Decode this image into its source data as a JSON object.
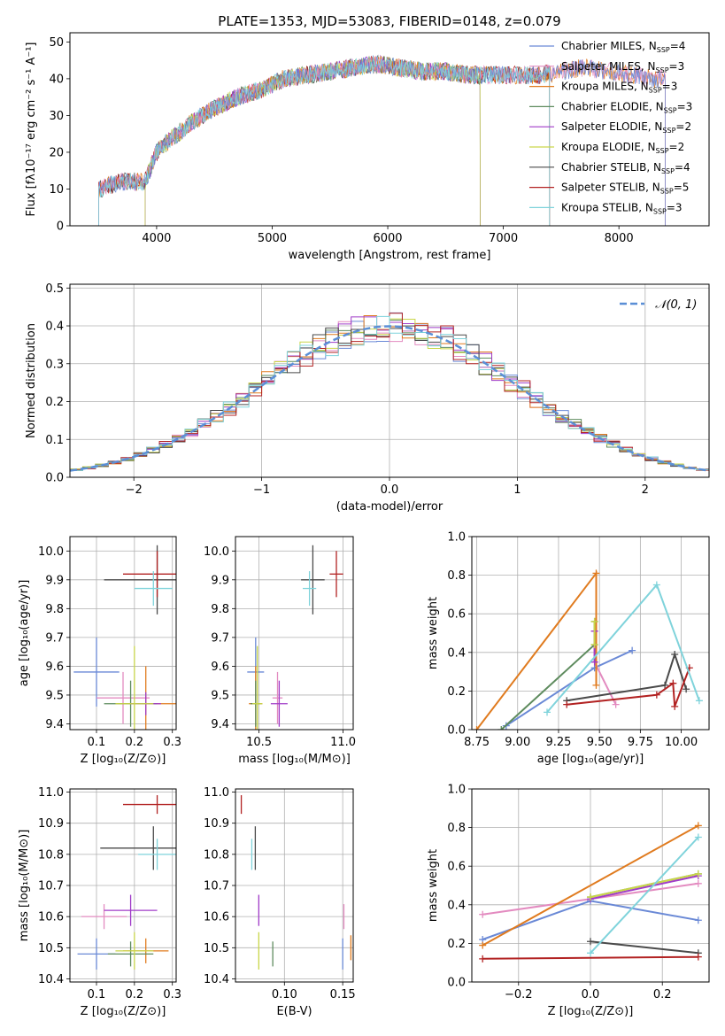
{
  "figure": {
    "title": "PLATE=1353, MJD=53083, FIBERID=0148, z=0.079"
  },
  "chart_data": [
    {
      "id": "spectrum",
      "type": "line",
      "xlabel": "wavelength [Angstrom, rest frame]",
      "ylabel": "Flux [fλ10⁻¹⁷ erg cm⁻² s⁻¹ A⁻¹]",
      "xlim": [
        3250,
        8780
      ],
      "ylim": [
        0,
        52.5
      ],
      "xticks": [
        4000,
        5000,
        6000,
        7000,
        8000
      ],
      "yticks": [
        0,
        10,
        20,
        30,
        40,
        50
      ],
      "legend_position": "upper right",
      "continuum_x": [
        3500,
        3700,
        3900,
        4000,
        4100,
        4300,
        4500,
        4700,
        4900,
        5100,
        5300,
        5500,
        5700,
        5900,
        6100,
        6300,
        6500,
        6700,
        6900,
        7100,
        7300,
        7500,
        7700,
        7900,
        8100,
        8300,
        8400
      ],
      "continuum_y": [
        10,
        12,
        12,
        20,
        23,
        28,
        32,
        35,
        37,
        40,
        41,
        42,
        43,
        44,
        43,
        42,
        42,
        41,
        41,
        41,
        41,
        42,
        43,
        42,
        41,
        40,
        40
      ],
      "series": [
        {
          "name": "Chabrier MILES, N$_{SSP}$=4",
          "label_main": "Chabrier MILES, N",
          "label_sub": "SSP",
          "label_end": "=4",
          "color": "#6a89d6",
          "start": 3500,
          "end": 8400
        },
        {
          "name": "Salpeter MILES, N$_{SSP}$=3",
          "label_main": "Salpeter MILES, N",
          "label_sub": "SSP",
          "label_end": "=3",
          "color": "#e38bc0",
          "start": 3500,
          "end": 8400
        },
        {
          "name": "Kroupa MILES, N$_{SSP}$=3",
          "label_main": "Kroupa MILES, N",
          "label_sub": "SSP",
          "label_end": "=3",
          "color": "#e07b1f",
          "start": 3500,
          "end": 8400
        },
        {
          "name": "Chabrier ELODIE, N$_{SSP}$=3",
          "label_main": "Chabrier ELODIE, N",
          "label_sub": "SSP",
          "label_end": "=3",
          "color": "#5e8b5e",
          "start": 3900,
          "end": 6800
        },
        {
          "name": "Salpeter ELODIE, N$_{SSP}$=2",
          "label_main": "Salpeter ELODIE, N",
          "label_sub": "SSP",
          "label_end": "=2",
          "color": "#a03cc8",
          "start": 3900,
          "end": 6800
        },
        {
          "name": "Kroupa ELODIE, N$_{SSP}$=2",
          "label_main": "Kroupa ELODIE, N",
          "label_sub": "SSP",
          "label_end": "=2",
          "color": "#c9d64a",
          "start": 3900,
          "end": 6800
        },
        {
          "name": "Chabrier STELIB, N$_{SSP}$=4",
          "label_main": "Chabrier STELIB, N",
          "label_sub": "SSP",
          "label_end": "=4",
          "color": "#4a4a4a",
          "start": 3500,
          "end": 7400
        },
        {
          "name": "Salpeter STELIB, N$_{SSP}$=5",
          "label_main": "Salpeter STELIB, N",
          "label_sub": "SSP",
          "label_end": "=5",
          "color": "#b22222",
          "start": 3500,
          "end": 7400
        },
        {
          "name": "Kroupa STELIB, N$_{SSP}$=3",
          "label_main": "Kroupa STELIB, N",
          "label_sub": "SSP",
          "label_end": "=3",
          "color": "#7fd3db",
          "start": 3500,
          "end": 7400
        }
      ]
    },
    {
      "id": "residuals",
      "type": "histogram",
      "xlabel": "(data-model)/error",
      "ylabel": "Normed distribution",
      "xlim": [
        -2.5,
        2.5
      ],
      "ylim": [
        0,
        0.51
      ],
      "xticks": [
        -2,
        -1,
        0,
        1,
        2
      ],
      "yticks": [
        0.0,
        0.1,
        0.2,
        0.3,
        0.4,
        0.5
      ],
      "grid": true,
      "legend_position": "upper right",
      "reference_curve": {
        "name": "N(0,1)",
        "label": "𝒩(0, 1)",
        "color": "#5b8fd6",
        "mean": 0,
        "sigma": 1
      },
      "bin_width": 0.1
    },
    {
      "id": "age_vs_Z",
      "type": "errorbar",
      "xlabel": "Z [log₁₀(Z/Z⊙)]",
      "ylabel": "age  [log₁₀(age/yr)]",
      "xlim": [
        0.03,
        0.31
      ],
      "ylim": [
        9.38,
        10.05
      ],
      "xticks": [
        0.1,
        0.2,
        0.3
      ],
      "yticks": [
        9.4,
        9.5,
        9.6,
        9.7,
        9.8,
        9.9,
        10.0
      ],
      "grid": true,
      "points": [
        {
          "x": 0.1,
          "y": 9.58,
          "xerr": 0.06,
          "yerr": 0.12,
          "color": "#6a89d6"
        },
        {
          "x": 0.17,
          "y": 9.49,
          "xerr": 0.07,
          "yerr": 0.09,
          "color": "#e38bc0"
        },
        {
          "x": 0.23,
          "y": 9.47,
          "xerr": 0.08,
          "yerr": 0.13,
          "color": "#e07b1f"
        },
        {
          "x": 0.19,
          "y": 9.47,
          "xerr": 0.07,
          "yerr": 0.08,
          "color": "#5e8b5e"
        },
        {
          "x": 0.23,
          "y": 9.47,
          "xerr": 0.04,
          "yerr": 0.04,
          "color": "#a03cc8"
        },
        {
          "x": 0.2,
          "y": 9.47,
          "xerr": 0.05,
          "yerr": 0.2,
          "color": "#c9d64a"
        },
        {
          "x": 0.26,
          "y": 9.9,
          "xerr": 0.14,
          "yerr": 0.12,
          "color": "#4a4a4a"
        },
        {
          "x": 0.26,
          "y": 9.92,
          "xerr": 0.09,
          "yerr": 0.08,
          "color": "#b22222"
        },
        {
          "x": 0.25,
          "y": 9.87,
          "xerr": 0.05,
          "yerr": 0.06,
          "color": "#7fd3db"
        }
      ]
    },
    {
      "id": "age_vs_mass",
      "type": "errorbar",
      "xlabel": "mass [log₁₀(M/M⊙)]",
      "ylabel": "",
      "xlim": [
        10.36,
        11.06
      ],
      "ylim": [
        9.38,
        10.05
      ],
      "xticks": [
        10.5,
        11.0
      ],
      "yticks": [
        9.4,
        9.5,
        9.6,
        9.7,
        9.8,
        9.9,
        10.0
      ],
      "grid": true,
      "points": [
        {
          "x": 10.48,
          "y": 9.58,
          "xerr": 0.05,
          "yerr": 0.12,
          "color": "#6a89d6"
        },
        {
          "x": 10.61,
          "y": 9.49,
          "xerr": 0.03,
          "yerr": 0.09,
          "color": "#e38bc0"
        },
        {
          "x": 10.48,
          "y": 9.47,
          "xerr": 0.04,
          "yerr": 0.13,
          "color": "#e07b1f"
        },
        {
          "x": 10.48,
          "y": 9.47,
          "xerr": 0.03,
          "yerr": 0.08,
          "color": "#5e8b5e"
        },
        {
          "x": 10.62,
          "y": 9.47,
          "xerr": 0.05,
          "yerr": 0.08,
          "color": "#a03cc8"
        },
        {
          "x": 10.49,
          "y": 9.47,
          "xerr": 0.03,
          "yerr": 0.2,
          "color": "#c9d64a"
        },
        {
          "x": 10.82,
          "y": 9.9,
          "xerr": 0.07,
          "yerr": 0.12,
          "color": "#4a4a4a"
        },
        {
          "x": 10.96,
          "y": 9.92,
          "xerr": 0.04,
          "yerr": 0.08,
          "color": "#b22222"
        },
        {
          "x": 10.8,
          "y": 9.87,
          "xerr": 0.04,
          "yerr": 0.06,
          "color": "#7fd3db"
        }
      ]
    },
    {
      "id": "weight_vs_age",
      "type": "line",
      "xlabel": "age  [log₁₀(age/yr)]",
      "ylabel": "mass weight",
      "xlim": [
        8.72,
        10.17
      ],
      "ylim": [
        0.0,
        1.0
      ],
      "xticks": [
        8.75,
        9.0,
        9.25,
        9.5,
        9.75,
        10.0
      ],
      "yticks": [
        0.0,
        0.2,
        0.4,
        0.6,
        0.8,
        1.0
      ],
      "grid": true,
      "series": [
        {
          "color": "#6a89d6",
          "x": [
            8.93,
            9.47,
            9.7
          ],
          "y": [
            0.02,
            0.32,
            0.41
          ]
        },
        {
          "color": "#e38bc0",
          "x": [
            9.47,
            9.47,
            9.6
          ],
          "y": [
            0.51,
            0.35,
            0.13
          ]
        },
        {
          "color": "#e07b1f",
          "x": [
            8.75,
            9.48,
            9.48
          ],
          "y": [
            0.0,
            0.81,
            0.23
          ]
        },
        {
          "color": "#5e8b5e",
          "x": [
            8.9,
            9.47,
            9.47
          ],
          "y": [
            0.0,
            0.44,
            0.56
          ]
        },
        {
          "color": "#a03cc8",
          "x": [
            9.47,
            9.47
          ],
          "y": [
            0.35,
            0.51
          ]
        },
        {
          "color": "#c9d64a",
          "x": [
            9.47,
            9.47
          ],
          "y": [
            0.44,
            0.56
          ]
        },
        {
          "color": "#4a4a4a",
          "x": [
            9.3,
            9.9,
            9.96,
            10.03
          ],
          "y": [
            0.15,
            0.23,
            0.39,
            0.21
          ]
        },
        {
          "color": "#b22222",
          "x": [
            9.3,
            9.85,
            9.95,
            9.96,
            10.05
          ],
          "y": [
            0.13,
            0.18,
            0.24,
            0.12,
            0.32
          ]
        },
        {
          "color": "#7fd3db",
          "x": [
            9.18,
            9.85,
            10.11
          ],
          "y": [
            0.09,
            0.75,
            0.15
          ]
        }
      ]
    },
    {
      "id": "mass_vs_Z",
      "type": "errorbar",
      "xlabel": "Z [log₁₀(Z/Z⊙)]",
      "ylabel": "mass [log₁₀(M/M⊙)]",
      "xlim": [
        0.03,
        0.31
      ],
      "ylim": [
        10.39,
        11.01
      ],
      "xticks": [
        0.1,
        0.2,
        0.3
      ],
      "yticks": [
        10.4,
        10.5,
        10.6,
        10.7,
        10.8,
        10.9,
        11.0
      ],
      "grid": true,
      "points": [
        {
          "x": 0.1,
          "y": 10.48,
          "xerr": 0.05,
          "yerr": 0.05,
          "color": "#6a89d6"
        },
        {
          "x": 0.12,
          "y": 10.6,
          "xerr": 0.06,
          "yerr": 0.04,
          "color": "#e38bc0"
        },
        {
          "x": 0.23,
          "y": 10.49,
          "xerr": 0.06,
          "yerr": 0.04,
          "color": "#e07b1f"
        },
        {
          "x": 0.19,
          "y": 10.48,
          "xerr": 0.06,
          "yerr": 0.04,
          "color": "#5e8b5e"
        },
        {
          "x": 0.19,
          "y": 10.62,
          "xerr": 0.07,
          "yerr": 0.05,
          "color": "#a03cc8"
        },
        {
          "x": 0.2,
          "y": 10.49,
          "xerr": 0.05,
          "yerr": 0.06,
          "color": "#c9d64a"
        },
        {
          "x": 0.25,
          "y": 10.82,
          "xerr": 0.14,
          "yerr": 0.07,
          "color": "#4a4a4a"
        },
        {
          "x": 0.26,
          "y": 10.96,
          "xerr": 0.09,
          "yerr": 0.03,
          "color": "#b22222"
        },
        {
          "x": 0.26,
          "y": 10.8,
          "xerr": 0.05,
          "yerr": 0.05,
          "color": "#7fd3db"
        }
      ]
    },
    {
      "id": "mass_vs_ebv",
      "type": "errorbar",
      "xlabel": "E(B-V)",
      "ylabel": "",
      "xlim": [
        0.058,
        0.159
      ],
      "ylim": [
        10.39,
        11.01
      ],
      "xticks": [
        0.1,
        0.15
      ],
      "yticks": [
        10.4,
        10.5,
        10.6,
        10.7,
        10.8,
        10.9,
        11.0
      ],
      "grid": true,
      "points": [
        {
          "x": 0.15,
          "y": 10.48,
          "yerr": 0.05,
          "color": "#6a89d6"
        },
        {
          "x": 0.151,
          "y": 10.6,
          "yerr": 0.04,
          "color": "#e38bc0"
        },
        {
          "x": 0.157,
          "y": 10.5,
          "yerr": 0.04,
          "color": "#e07b1f"
        },
        {
          "x": 0.09,
          "y": 10.48,
          "yerr": 0.04,
          "color": "#5e8b5e"
        },
        {
          "x": 0.078,
          "y": 10.62,
          "yerr": 0.05,
          "color": "#a03cc8"
        },
        {
          "x": 0.078,
          "y": 10.49,
          "yerr": 0.06,
          "color": "#c9d64a"
        },
        {
          "x": 0.075,
          "y": 10.82,
          "yerr": 0.07,
          "color": "#4a4a4a"
        },
        {
          "x": 0.063,
          "y": 10.96,
          "yerr": 0.03,
          "color": "#b22222"
        },
        {
          "x": 0.072,
          "y": 10.8,
          "yerr": 0.05,
          "color": "#7fd3db"
        }
      ]
    },
    {
      "id": "weight_vs_Z",
      "type": "line",
      "xlabel": "Z [log₁₀(Z/Z⊙)]",
      "ylabel": "mass weight",
      "xlim": [
        -0.33,
        0.33
      ],
      "ylim": [
        0.0,
        1.0
      ],
      "xticks": [
        -0.2,
        0.0,
        0.2
      ],
      "yticks": [
        0.0,
        0.2,
        0.4,
        0.6,
        0.8,
        1.0
      ],
      "grid": true,
      "series": [
        {
          "color": "#6a89d6",
          "x": [
            -0.3,
            0.0,
            0.3
          ],
          "y": [
            0.22,
            0.42,
            0.32
          ]
        },
        {
          "color": "#e38bc0",
          "x": [
            -0.3,
            0.3
          ],
          "y": [
            0.35,
            0.51
          ]
        },
        {
          "color": "#e07b1f",
          "x": [
            -0.3,
            0.3
          ],
          "y": [
            0.19,
            0.81
          ]
        },
        {
          "color": "#5e8b5e",
          "x": [
            0.0,
            0.3
          ],
          "y": [
            0.44,
            0.56
          ]
        },
        {
          "color": "#a03cc8",
          "x": [
            0.0,
            0.3
          ],
          "y": [
            0.43,
            0.55
          ]
        },
        {
          "color": "#c9d64a",
          "x": [
            0.0,
            0.3
          ],
          "y": [
            0.44,
            0.56
          ]
        },
        {
          "color": "#4a4a4a",
          "x": [
            0.0,
            0.3
          ],
          "y": [
            0.21,
            0.15
          ]
        },
        {
          "color": "#b22222",
          "x": [
            -0.3,
            0.3
          ],
          "y": [
            0.12,
            0.13
          ]
        },
        {
          "color": "#7fd3db",
          "x": [
            0.0,
            0.3
          ],
          "y": [
            0.15,
            0.75
          ]
        }
      ]
    }
  ]
}
